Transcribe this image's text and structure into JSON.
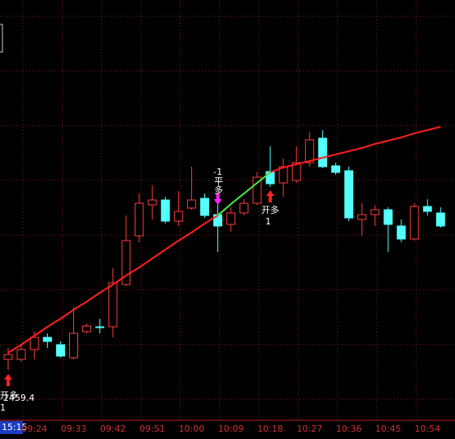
{
  "chart_data": {
    "type": "candlestick",
    "categories": [
      null,
      null,
      "09:24",
      null,
      null,
      "09:33",
      null,
      null,
      "09:42",
      null,
      null,
      "09:51",
      null,
      null,
      "10:00",
      null,
      null,
      "10:09",
      null,
      null,
      "10:18",
      null,
      null,
      "10:27",
      null,
      null,
      "10:36",
      null,
      null,
      "10:45",
      null,
      null,
      "10:54",
      null
    ],
    "open": [
      2459.2,
      2459.2,
      2460.4,
      2461.9,
      2461.0,
      2459.4,
      2462.6,
      2463.2,
      2463.2,
      2468.4,
      2474.4,
      2478.2,
      2478.8,
      2476.2,
      2477.8,
      2479.0,
      2477.0,
      2475.8,
      2477.2,
      2478.4,
      2482.3,
      2480.9,
      2481.2,
      2483.4,
      2486.4,
      2483.0,
      2482.4,
      2476.4,
      2477.0,
      2477.6,
      2475.6,
      2474.0,
      2478.0,
      2477.2
    ],
    "high": [
      2460.6,
      2460.9,
      2462.6,
      2462.4,
      2461.4,
      2465.6,
      2463.6,
      2464.2,
      2470.4,
      2476.9,
      2479.6,
      2480.6,
      2479.2,
      2479.9,
      2482.9,
      2479.6,
      2478.4,
      2477.9,
      2478.9,
      2482.2,
      2485.4,
      2483.9,
      2485.4,
      2487.2,
      2487.4,
      2483.4,
      2482.9,
      2478.4,
      2478.2,
      2477.9,
      2476.4,
      2478.4,
      2478.9,
      2477.9
    ],
    "low": [
      2457.9,
      2458.9,
      2459.2,
      2460.6,
      2459.4,
      2459.2,
      2462.4,
      2462.4,
      2461.9,
      2468.2,
      2473.6,
      2476.4,
      2475.9,
      2475.6,
      2477.6,
      2476.6,
      2472.4,
      2474.9,
      2476.9,
      2478.2,
      2480.4,
      2479.2,
      2480.9,
      2482.9,
      2482.7,
      2481.9,
      2476.2,
      2474.4,
      2475.6,
      2472.4,
      2473.6,
      2473.8,
      2476.9,
      2475.4
    ],
    "close": [
      2459.8,
      2460.4,
      2461.9,
      2461.4,
      2459.6,
      2462.4,
      2463.3,
      2463.2,
      2468.6,
      2473.8,
      2478.4,
      2478.8,
      2476.2,
      2477.4,
      2478.8,
      2476.9,
      2475.6,
      2477.2,
      2478.4,
      2481.6,
      2480.8,
      2482.9,
      2483.4,
      2486.2,
      2482.9,
      2482.2,
      2476.6,
      2477.0,
      2477.6,
      2475.8,
      2474.0,
      2478.0,
      2477.4,
      2475.6
    ],
    "up_color": "#ff3c3c",
    "down_color": "#54ffff",
    "lines": [
      {
        "color": "#ff1e1e",
        "values": [
          2460.0,
          2461.0,
          2462.1,
          2463.2,
          2464.2,
          2465.3,
          2466.3,
          2467.4,
          2468.4,
          2469.5,
          2470.5,
          2471.6,
          2472.7,
          2473.8,
          2474.8,
          2475.9,
          2476.9,
          2478.3,
          2479.6,
          2480.9,
          2482.2,
          2482.8,
          2483.2,
          2483.6,
          2484.0,
          2484.4,
          2484.8,
          2485.2,
          2485.7,
          2486.1,
          2486.5,
          2487.0,
          2487.4,
          2487.8
        ]
      },
      {
        "color": "#3cf03c",
        "values": [
          null,
          null,
          null,
          null,
          null,
          null,
          null,
          null,
          null,
          null,
          null,
          null,
          null,
          null,
          null,
          null,
          2476.9,
          2478.3,
          2479.6,
          2480.9,
          2482.2,
          null,
          null,
          null,
          null,
          null,
          null,
          null,
          null,
          null,
          null,
          null,
          null,
          null
        ]
      }
    ],
    "ylim": [
      2451.9,
      2503.4
    ],
    "grid": true,
    "signals": [
      {
        "action": "开多",
        "price": 2459.4,
        "qty": "1"
      },
      {
        "action": "平多",
        "qty": "-1"
      },
      {
        "action": "开多",
        "qty": "1"
      }
    ],
    "cursor_time": "15:15"
  }
}
